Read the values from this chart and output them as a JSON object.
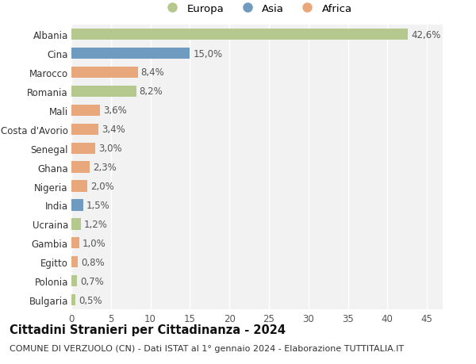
{
  "countries": [
    "Albania",
    "Cina",
    "Marocco",
    "Romania",
    "Mali",
    "Costa d'Avorio",
    "Senegal",
    "Ghana",
    "Nigeria",
    "India",
    "Ucraina",
    "Gambia",
    "Egitto",
    "Polonia",
    "Bulgaria"
  ],
  "values": [
    42.6,
    15.0,
    8.4,
    8.2,
    3.6,
    3.4,
    3.0,
    2.3,
    2.0,
    1.5,
    1.2,
    1.0,
    0.8,
    0.7,
    0.5
  ],
  "labels": [
    "42,6%",
    "15,0%",
    "8,4%",
    "8,2%",
    "3,6%",
    "3,4%",
    "3,0%",
    "2,3%",
    "2,0%",
    "1,5%",
    "1,2%",
    "1,0%",
    "0,8%",
    "0,7%",
    "0,5%"
  ],
  "continents": [
    "Europa",
    "Asia",
    "Africa",
    "Europa",
    "Africa",
    "Africa",
    "Africa",
    "Africa",
    "Africa",
    "Asia",
    "Europa",
    "Africa",
    "Africa",
    "Europa",
    "Europa"
  ],
  "colors": {
    "Europa": "#b5c98e",
    "Asia": "#6e9bbf",
    "Africa": "#e8a87c"
  },
  "xlim": [
    0,
    47
  ],
  "xticks": [
    0,
    5,
    10,
    15,
    20,
    25,
    30,
    35,
    40,
    45
  ],
  "title": "Cittadini Stranieri per Cittadinanza - 2024",
  "subtitle": "COMUNE DI VERZUOLO (CN) - Dati ISTAT al 1° gennaio 2024 - Elaborazione TUTTITALIA.IT",
  "background_color": "#ffffff",
  "plot_bg_color": "#f2f2f2",
  "grid_color": "#ffffff",
  "bar_height": 0.6,
  "label_fontsize": 8.5,
  "tick_fontsize": 8.5,
  "ylabel_fontsize": 8.5,
  "title_fontsize": 10.5,
  "subtitle_fontsize": 8
}
